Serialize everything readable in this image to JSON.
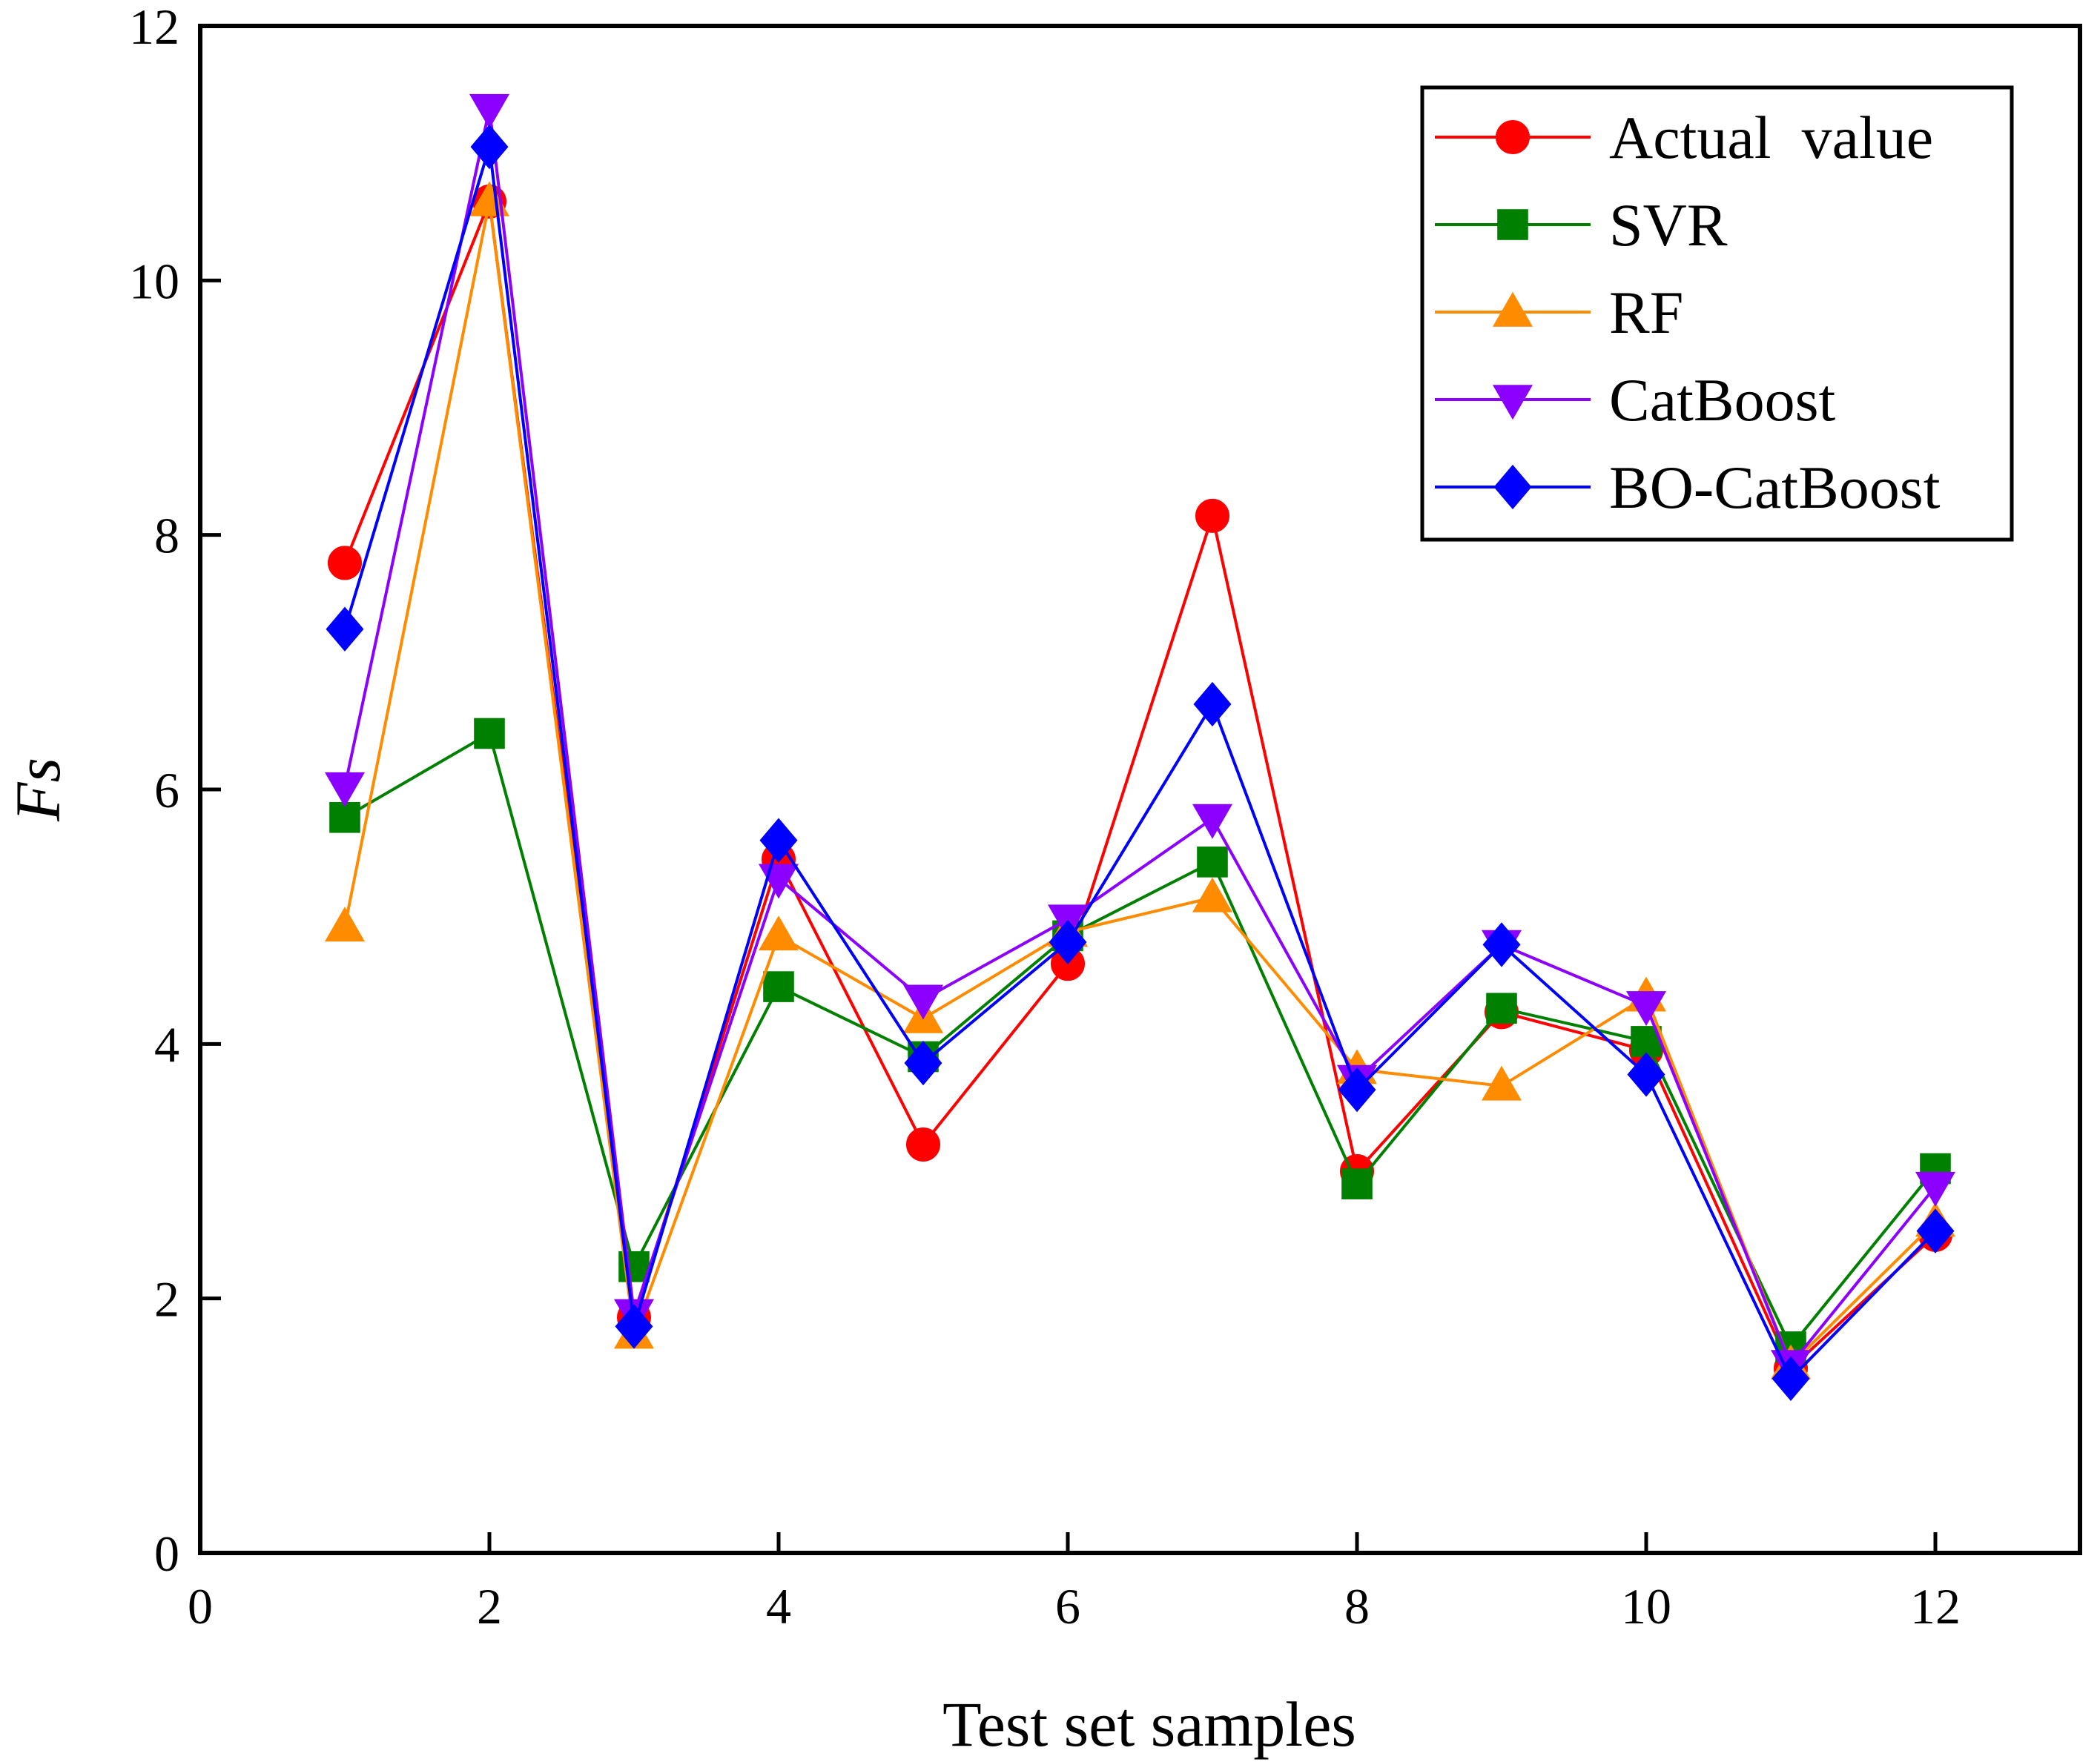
{
  "chart_data": {
    "type": "line",
    "title": "",
    "xlabel": "Test set samples",
    "ylabel": "Fs",
    "xlim": [
      0,
      13
    ],
    "ylim": [
      0,
      12
    ],
    "xticks": [
      0,
      2,
      4,
      6,
      8,
      10,
      12
    ],
    "yticks": [
      0,
      2,
      4,
      6,
      8,
      10,
      12
    ],
    "x": [
      1,
      2,
      3,
      4,
      5,
      6,
      7,
      8,
      9,
      10,
      11,
      12
    ],
    "grid": false,
    "legend_position": "top-right",
    "series": [
      {
        "name": "Actual  value",
        "color": "#ff0000",
        "marker": "circle",
        "values": [
          7.78,
          10.62,
          1.85,
          5.45,
          3.21,
          4.63,
          8.15,
          3.0,
          4.25,
          3.95,
          1.45,
          2.5
        ]
      },
      {
        "name": "SVR",
        "color": "#008000",
        "marker": "square",
        "values": [
          5.78,
          6.44,
          2.25,
          4.45,
          3.9,
          4.85,
          5.43,
          2.9,
          4.28,
          4.02,
          1.62,
          3.02
        ]
      },
      {
        "name": "RF",
        "color": "#ff8c00",
        "marker": "triangle-up",
        "values": [
          4.92,
          10.62,
          1.72,
          4.85,
          4.2,
          4.88,
          5.15,
          3.8,
          3.67,
          4.37,
          1.48,
          2.6
        ]
      },
      {
        "name": "CatBoost",
        "color": "#8b00ff",
        "marker": "triangle-down",
        "values": [
          6.02,
          11.35,
          1.88,
          5.3,
          4.35,
          4.98,
          5.77,
          3.72,
          4.78,
          4.3,
          1.48,
          2.88
        ]
      },
      {
        "name": "BO-CatBoost",
        "color": "#0000ff",
        "marker": "diamond",
        "values": [
          7.26,
          11.05,
          1.78,
          5.6,
          3.85,
          4.8,
          6.67,
          3.64,
          4.78,
          3.76,
          1.37,
          2.53
        ]
      }
    ]
  }
}
